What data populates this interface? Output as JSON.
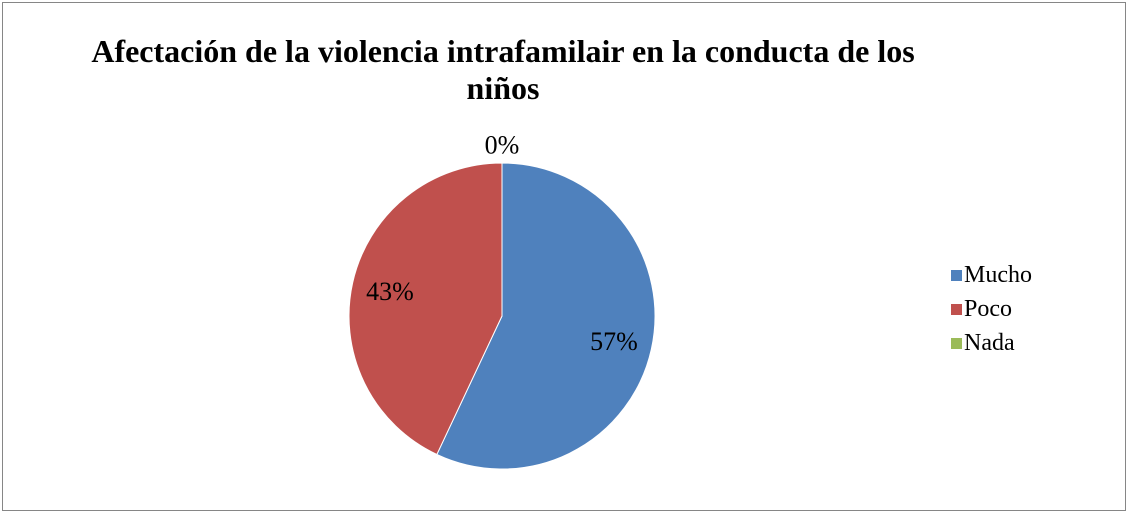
{
  "chart_data": {
    "type": "pie",
    "title_lines": [
      "Afectación de la violencia intrafamilair en la conducta de los",
      "niños"
    ],
    "categories": [
      "Mucho",
      "Poco",
      "Nada"
    ],
    "values": [
      57,
      43,
      0
    ],
    "data_labels": [
      "57%",
      "43%",
      "0%"
    ],
    "colors": [
      "#4F81BD",
      "#C0504D",
      "#9BBB59"
    ],
    "legend_position": "right",
    "start_angle_deg": 0,
    "direction": "clockwise"
  }
}
